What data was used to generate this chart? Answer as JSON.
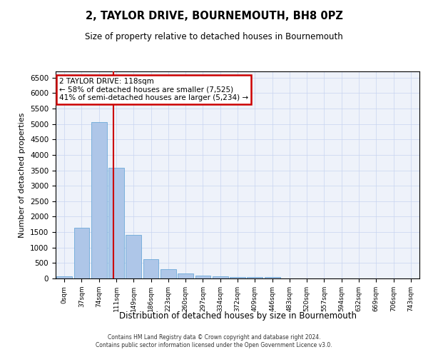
{
  "title": "2, TAYLOR DRIVE, BOURNEMOUTH, BH8 0PZ",
  "subtitle": "Size of property relative to detached houses in Bournemouth",
  "xlabel": "Distribution of detached houses by size in Bournemouth",
  "ylabel": "Number of detached properties",
  "bin_labels": [
    "0sqm",
    "37sqm",
    "74sqm",
    "111sqm",
    "149sqm",
    "186sqm",
    "223sqm",
    "260sqm",
    "297sqm",
    "334sqm",
    "372sqm",
    "409sqm",
    "446sqm",
    "483sqm",
    "520sqm",
    "557sqm",
    "594sqm",
    "632sqm",
    "669sqm",
    "706sqm",
    "743sqm"
  ],
  "bar_values": [
    75,
    1650,
    5050,
    3580,
    1400,
    620,
    310,
    155,
    100,
    65,
    50,
    35,
    55,
    5,
    5,
    3,
    3,
    2,
    2,
    2,
    2
  ],
  "bar_color": "#aec6e8",
  "bar_edgecolor": "#5a9fd4",
  "vline_color": "#cc0000",
  "vline_x": 2.85,
  "annotation_title": "2 TAYLOR DRIVE: 118sqm",
  "annotation_line1": "← 58% of detached houses are smaller (7,525)",
  "annotation_line2": "41% of semi-detached houses are larger (5,234) →",
  "annotation_box_color": "#cc0000",
  "ylim": [
    0,
    6700
  ],
  "yticks": [
    0,
    500,
    1000,
    1500,
    2000,
    2500,
    3000,
    3500,
    4000,
    4500,
    5000,
    5500,
    6000,
    6500
  ],
  "background_color": "#eef2fa",
  "footer_line1": "Contains HM Land Registry data © Crown copyright and database right 2024.",
  "footer_line2": "Contains public sector information licensed under the Open Government Licence v3.0."
}
